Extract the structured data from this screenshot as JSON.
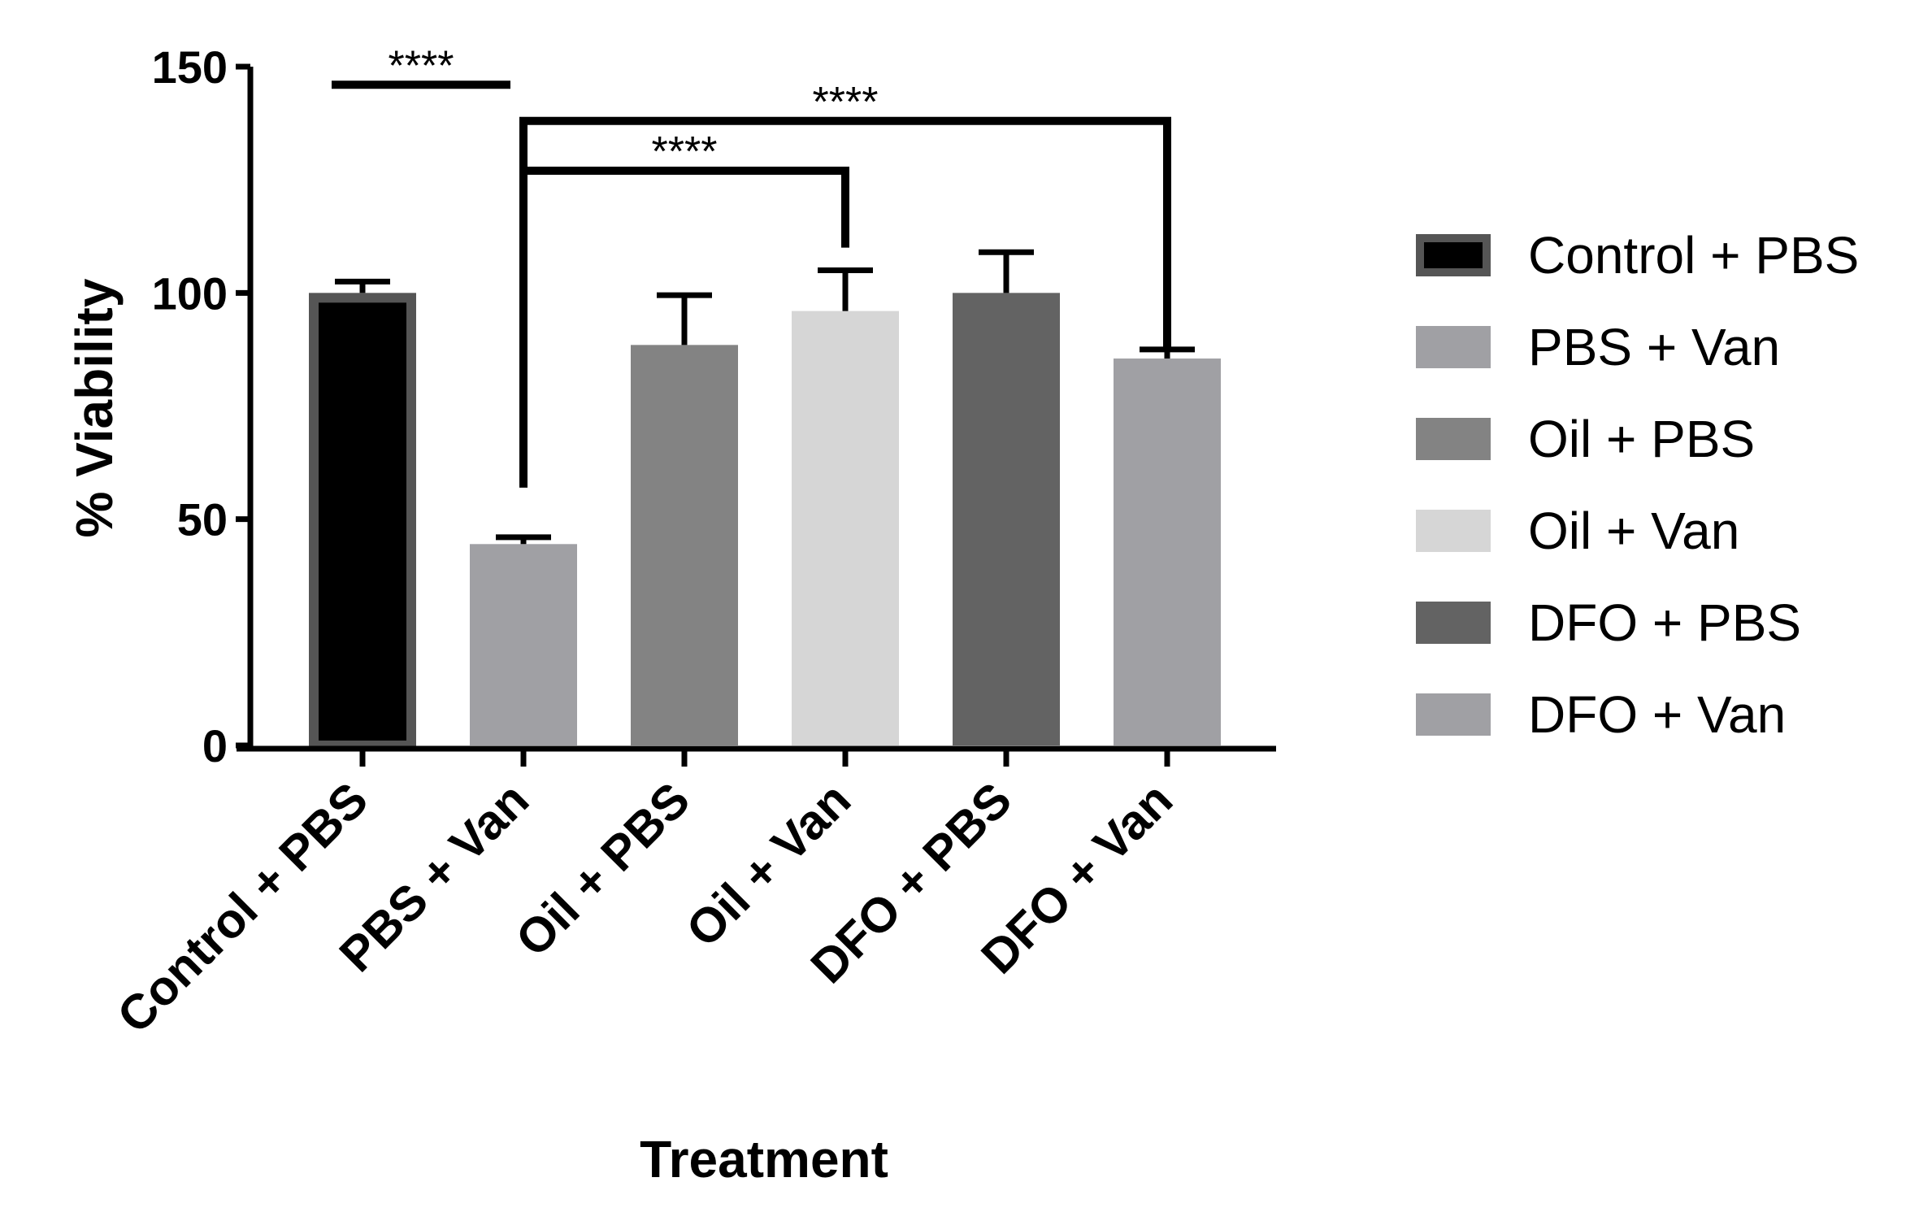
{
  "chart_data": {
    "type": "bar",
    "title": "",
    "xlabel": "Treatment",
    "ylabel": "% Viability",
    "ylim": [
      0,
      150
    ],
    "yticks": [
      0,
      50,
      100,
      150
    ],
    "grid": false,
    "legend_position": "right",
    "categories": [
      "Control + PBS",
      "PBS + Van",
      "Oil + PBS",
      "Oil + Van",
      "DFO + PBS",
      "DFO + Van"
    ],
    "values": [
      100,
      44.5,
      88.5,
      96,
      100,
      85.5
    ],
    "errors": [
      2.5,
      1.5,
      11,
      9,
      9,
      2
    ],
    "colors": [
      "#000000",
      "#a0a0a4",
      "#838383",
      "#d6d6d6",
      "#636363",
      "#a0a0a4"
    ],
    "edge_colors": [
      "#555555",
      null,
      null,
      null,
      null,
      null
    ],
    "legend": [
      {
        "label": "Control + PBS",
        "color": "#000000",
        "edge": "#555555"
      },
      {
        "label": "PBS + Van",
        "color": "#a0a0a4",
        "edge": null
      },
      {
        "label": "Oil + PBS",
        "color": "#838383",
        "edge": null
      },
      {
        "label": "Oil + Van",
        "color": "#d6d6d6",
        "edge": null
      },
      {
        "label": "DFO + PBS",
        "color": "#636363",
        "edge": null
      },
      {
        "label": "DFO + Van",
        "color": "#a0a0a4",
        "edge": null
      }
    ],
    "significance": [
      {
        "type": "line",
        "from": 0,
        "to": 1,
        "y": 146,
        "label": "****"
      },
      {
        "type": "bracket",
        "from": 1,
        "to": 5,
        "y": 138,
        "from_end": 57,
        "to_end": 87,
        "label": "****"
      },
      {
        "type": "bracket",
        "from": 1,
        "to": 3,
        "y": 127,
        "from_end": 57,
        "to_end": 110,
        "label": "****"
      }
    ]
  }
}
